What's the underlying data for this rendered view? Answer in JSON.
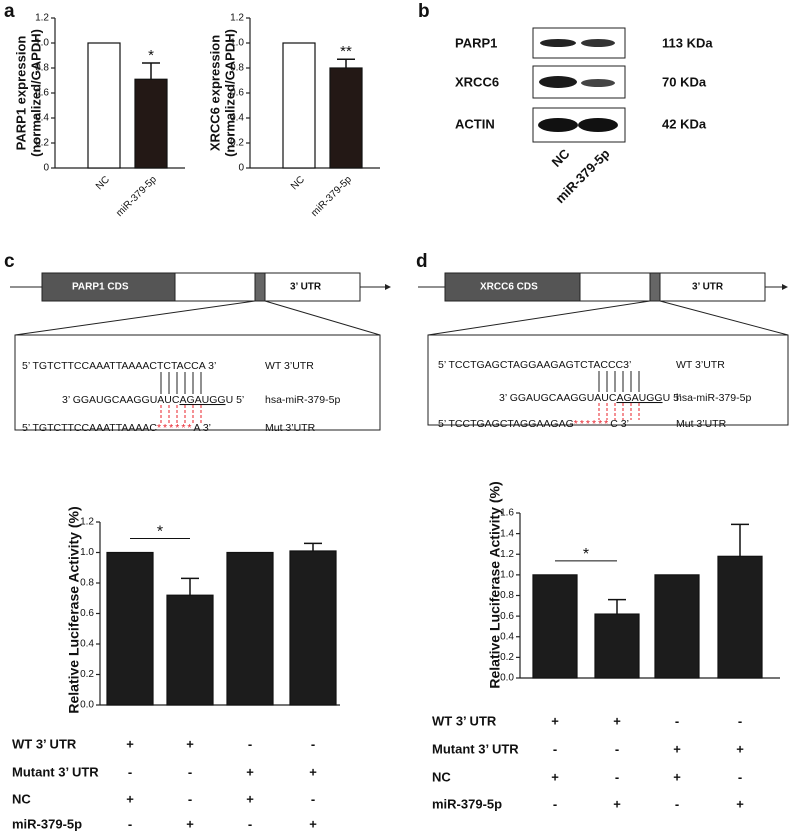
{
  "chart_data": [
    {
      "type": "bar",
      "ylabel": [
        "PARP1 expression",
        "(normalized/GAPDH)"
      ],
      "categories": [
        "NC",
        "miR-379-5p"
      ],
      "values": [
        1.0,
        0.71
      ],
      "errors": [
        null,
        0.13
      ],
      "colors": [
        "#ffffff",
        "#231815"
      ],
      "ylim": [
        0,
        1.2
      ],
      "yticks": [
        0,
        0.2,
        0.4,
        0.6,
        0.8,
        {
          "value": 1,
          "label": "1.0"
        },
        1.2
      ],
      "significance": "*"
    },
    {
      "type": "bar",
      "ylabel": [
        "XRCC6 expression",
        "(normalized/GAPDH)"
      ],
      "categories": [
        "NC",
        "miR-379-5p"
      ],
      "values": [
        1.0,
        0.8
      ],
      "errors": [
        null,
        0.07
      ],
      "colors": [
        "#ffffff",
        "#231815"
      ],
      "ylim": [
        0,
        1.2
      ],
      "yticks": [
        0,
        0.2,
        0.4,
        0.6,
        0.8,
        {
          "value": 1,
          "label": "1.0"
        },
        1.2
      ],
      "significance": "**"
    },
    {
      "type": "bar",
      "ylabel": "Relative Luciferase Activity (%)",
      "categories": [
        null,
        null,
        null,
        null
      ],
      "values": [
        1.0,
        0.72,
        1.0,
        1.01
      ],
      "errors": [
        null,
        0.11,
        null,
        0.05
      ],
      "color": "#1c1c1c",
      "ylim": [
        0,
        1.2
      ],
      "yticks": [
        {
          "value": 0,
          "label": "0.0"
        },
        0.2,
        0.4,
        0.6,
        0.8,
        {
          "value": 1,
          "label": "1.0"
        },
        1.2
      ],
      "significance": "*"
    },
    {
      "type": "bar",
      "ylabel": "Relative Luciferase Activity (%)",
      "categories": [
        null,
        null,
        null,
        null
      ],
      "values": [
        1.0,
        0.62,
        1.0,
        1.18
      ],
      "errors": [
        null,
        0.14,
        null,
        0.31
      ],
      "color": "#1c1c1c",
      "ylim": [
        0,
        1.6
      ],
      "yticks": [
        {
          "value": 0,
          "label": "0.0"
        },
        0.2,
        0.4,
        0.6,
        0.8,
        {
          "value": 1,
          "label": "1.0"
        },
        1.2,
        1.4,
        1.6
      ],
      "significance": "*"
    }
  ],
  "panel_labels": [
    "a",
    "b",
    "c",
    "d"
  ],
  "blot": {
    "rows": [
      {
        "protein": "PARP1",
        "size": "113 KDa"
      },
      {
        "protein": "XRCC6",
        "size": "70 KDa"
      },
      {
        "protein": "ACTIN",
        "size": "42 KDa"
      }
    ],
    "lanes": [
      "NC",
      "miR-379-5p"
    ]
  },
  "diagram_c": {
    "cds": "PARP1  CDS",
    "utr": "3’ UTR",
    "wt_seq": "5’ TGTCTTCCAAATTAAAACTCTACCA 3’",
    "wt_label": "WT 3’UTR",
    "mir_seq": [
      "3’ GGAUGCAAGGUAUC",
      "AGAUGG",
      "U 5’"
    ],
    "mir_label": "hsa-miR-379-5p",
    "mut_seq": [
      "5’ TGTCTTCCAAATTAAAAC",
      "******",
      "A 3’"
    ],
    "mut_label": "Mut 3’UTR"
  },
  "diagram_d": {
    "cds": "XRCC6  CDS",
    "utr": "3’ UTR",
    "wt_seq": "5’ TCCTGAGCTAGGAAGAGTCTACCC3’",
    "wt_label": "WT 3’UTR",
    "mir_seq": [
      "3’ GGAUGCAAGGUAUC",
      "AGAUGG",
      "U 5’"
    ],
    "mir_label": "hsa-miR-379-5p",
    "mut_seq": [
      "5’ TCCTGAGCTAGGAAGAG",
      "******",
      "C 3’"
    ],
    "mut_label": "Mut 3’UTR"
  },
  "table_c": {
    "rows": [
      {
        "label": "WT 3’ UTR",
        "cells": [
          "+",
          "+",
          "-",
          "-"
        ]
      },
      {
        "label": "Mutant 3’ UTR",
        "cells": [
          "-",
          "-",
          "+",
          "+"
        ]
      },
      {
        "label": "NC",
        "cells": [
          "+",
          "-",
          "+",
          "-"
        ]
      },
      {
        "label": "miR-379-5p",
        "cells": [
          "-",
          "+",
          "-",
          "+"
        ]
      }
    ]
  },
  "table_d": {
    "rows": [
      {
        "label": "WT 3’ UTR",
        "cells": [
          "+",
          "+",
          "-",
          "-"
        ]
      },
      {
        "label": "Mutant 3’ UTR",
        "cells": [
          "-",
          "-",
          "+",
          "+"
        ]
      },
      {
        "label": "NC",
        "cells": [
          "+",
          "-",
          "+",
          "-"
        ]
      },
      {
        "label": "miR-379-5p",
        "cells": [
          "-",
          "+",
          "-",
          "+"
        ]
      }
    ]
  }
}
